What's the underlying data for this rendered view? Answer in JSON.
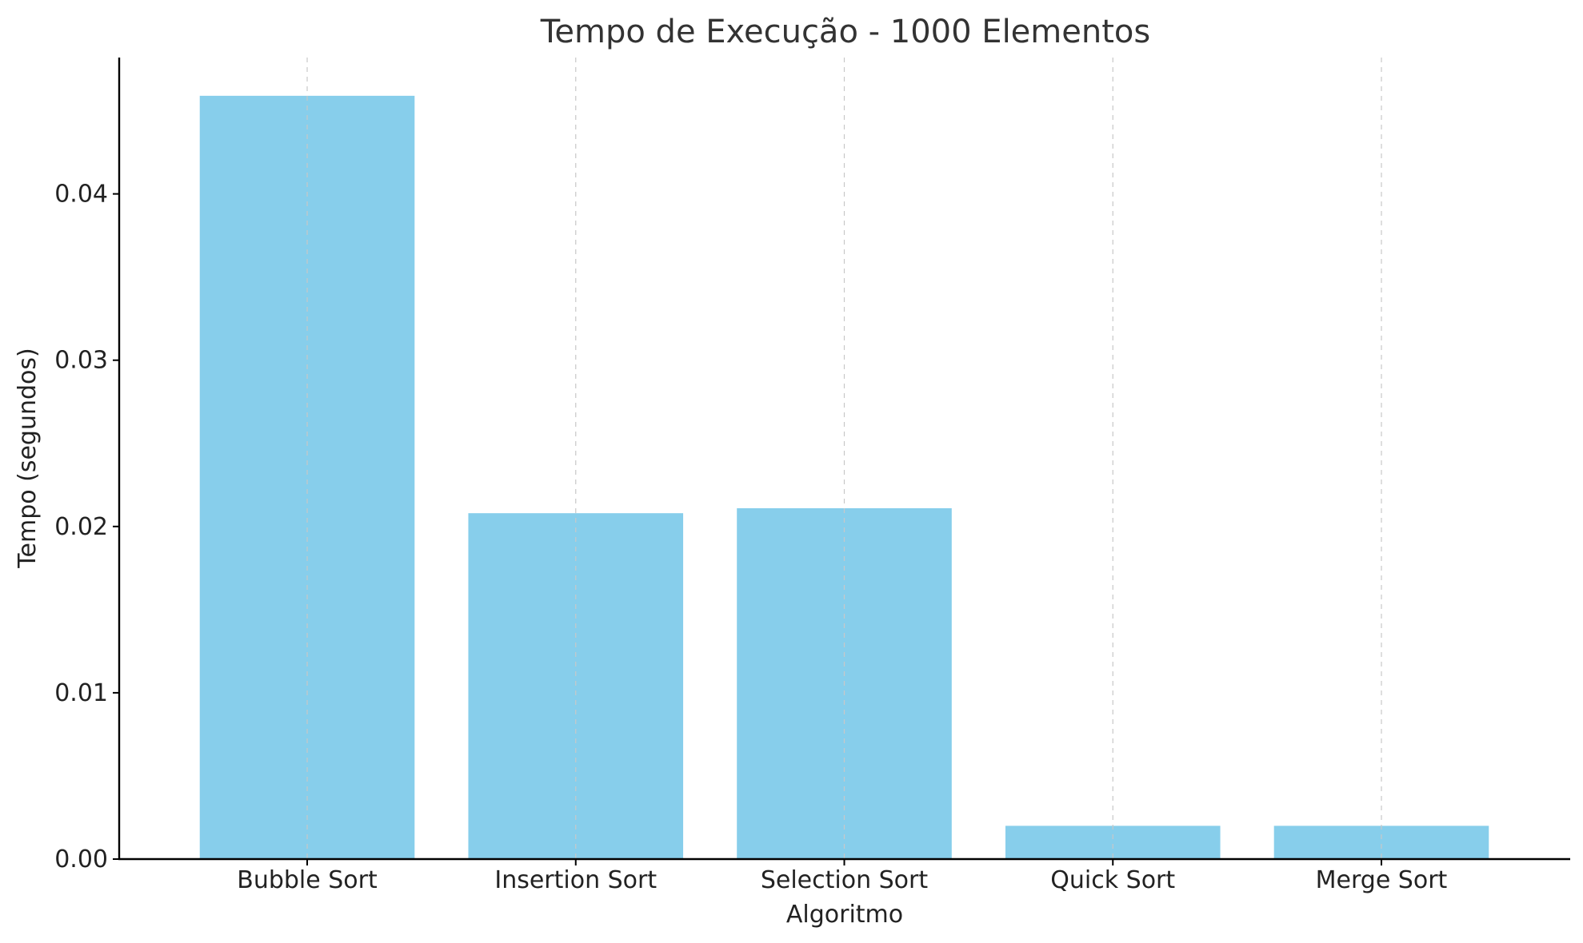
{
  "chart_data": {
    "type": "bar",
    "title": "Tempo de Execução - 1000 Elementos",
    "xlabel": "Algoritmo",
    "ylabel": "Tempo (segundos)",
    "categories": [
      "Bubble Sort",
      "Insertion Sort",
      "Selection Sort",
      "Quick Sort",
      "Merge Sort"
    ],
    "values": [
      0.0459,
      0.0208,
      0.0211,
      0.002,
      0.002
    ],
    "yticks": [
      "0.00",
      "0.01",
      "0.02",
      "0.03",
      "0.04"
    ],
    "ylim": [
      0,
      0.0482
    ],
    "grid": "vertical dashed",
    "bar_color": "#87ceeb",
    "grid_color": "#c8c8c8"
  }
}
